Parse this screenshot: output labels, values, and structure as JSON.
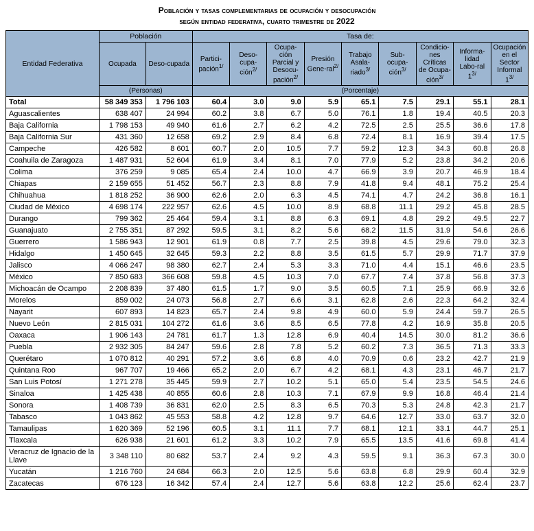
{
  "title": "Población y tasas complementarias de ocupación y desocupación",
  "subtitle": "según entidad federativa, cuarto trimestre de 2022",
  "headers": {
    "entity": "Entidad Federativa",
    "population_group": "Población",
    "rate_group": "Tasa de:",
    "ocupada": "Ocupada",
    "desocupada": "Deso-cupada",
    "participacion": "Partici-pación",
    "desocupacion": "Deso-cupa-ción",
    "ocup_parcial": "Ocupa-ción Parcial y Desocu-pación",
    "presion": "Presión Gene-ral",
    "trabajo_asal": "Trabajo Asala-riado",
    "subocup": "Sub-ocupa-ción",
    "cond_crit": "Condicio-nes Críticas de Ocupa-ción",
    "informal": "Informa-lidad Labo-ral 1",
    "sector_inf": "Ocupación en el Sector Informal 1",
    "units_personas": "(Personas)",
    "units_porcentaje": "(Porcentaje)",
    "sup1": "1/",
    "sup2": "2/",
    "sup3": "3/"
  },
  "rows": [
    {
      "entity": "Total",
      "ocupada": "58 349 353",
      "desocupada": "1 796 103",
      "r": [
        "60.4",
        "3.0",
        "9.0",
        "5.9",
        "65.1",
        "7.5",
        "29.1",
        "55.1",
        "28.1"
      ],
      "bold": true
    },
    {
      "entity": "Aguascalientes",
      "ocupada": "638 407",
      "desocupada": "24 994",
      "r": [
        "60.2",
        "3.8",
        "6.7",
        "5.0",
        "76.1",
        "1.8",
        "19.4",
        "40.5",
        "20.3"
      ]
    },
    {
      "entity": "Baja California",
      "ocupada": "1 798 153",
      "desocupada": "49 940",
      "r": [
        "61.6",
        "2.7",
        "6.2",
        "4.2",
        "72.5",
        "2.5",
        "25.5",
        "36.6",
        "17.8"
      ]
    },
    {
      "entity": "Baja California Sur",
      "ocupada": "431 360",
      "desocupada": "12 658",
      "r": [
        "69.2",
        "2.9",
        "8.4",
        "6.8",
        "72.4",
        "8.1",
        "16.9",
        "39.4",
        "17.5"
      ]
    },
    {
      "entity": "Campeche",
      "ocupada": "426 582",
      "desocupada": "8 601",
      "r": [
        "60.7",
        "2.0",
        "10.5",
        "7.7",
        "59.2",
        "12.3",
        "34.3",
        "60.8",
        "26.8"
      ]
    },
    {
      "entity": "Coahuila de Zaragoza",
      "ocupada": "1 487 931",
      "desocupada": "52 604",
      "r": [
        "61.9",
        "3.4",
        "8.1",
        "7.0",
        "77.9",
        "5.2",
        "23.8",
        "34.2",
        "20.6"
      ]
    },
    {
      "entity": "Colima",
      "ocupada": "376 259",
      "desocupada": "9 085",
      "r": [
        "65.4",
        "2.4",
        "10.0",
        "4.7",
        "66.9",
        "3.9",
        "20.7",
        "46.9",
        "18.4"
      ]
    },
    {
      "entity": "Chiapas",
      "ocupada": "2 159 655",
      "desocupada": "51 452",
      "r": [
        "56.7",
        "2.3",
        "8.8",
        "7.9",
        "41.8",
        "9.4",
        "48.1",
        "75.2",
        "25.4"
      ]
    },
    {
      "entity": "Chihuahua",
      "ocupada": "1 818 252",
      "desocupada": "36 900",
      "r": [
        "62.6",
        "2.0",
        "6.3",
        "4.5",
        "74.1",
        "4.7",
        "24.2",
        "36.8",
        "16.1"
      ]
    },
    {
      "entity": "Ciudad de México",
      "ocupada": "4 698 174",
      "desocupada": "222 957",
      "r": [
        "62.6",
        "4.5",
        "10.0",
        "8.9",
        "68.8",
        "11.1",
        "29.2",
        "45.8",
        "28.5"
      ]
    },
    {
      "entity": "Durango",
      "ocupada": "799 362",
      "desocupada": "25 464",
      "r": [
        "59.4",
        "3.1",
        "8.8",
        "6.3",
        "69.1",
        "4.8",
        "29.2",
        "49.5",
        "22.7"
      ]
    },
    {
      "entity": "Guanajuato",
      "ocupada": "2 755 351",
      "desocupada": "87 292",
      "r": [
        "59.5",
        "3.1",
        "8.2",
        "5.6",
        "68.2",
        "11.5",
        "31.9",
        "54.6",
        "26.6"
      ]
    },
    {
      "entity": "Guerrero",
      "ocupada": "1 586 943",
      "desocupada": "12 901",
      "r": [
        "61.9",
        "0.8",
        "7.7",
        "2.5",
        "39.8",
        "4.5",
        "29.6",
        "79.0",
        "32.3"
      ]
    },
    {
      "entity": "Hidalgo",
      "ocupada": "1 450 645",
      "desocupada": "32 645",
      "r": [
        "59.3",
        "2.2",
        "8.8",
        "3.5",
        "61.5",
        "5.7",
        "29.9",
        "71.7",
        "37.9"
      ]
    },
    {
      "entity": "Jalisco",
      "ocupada": "4 066 247",
      "desocupada": "98 380",
      "r": [
        "62.7",
        "2.4",
        "5.3",
        "3.3",
        "71.0",
        "4.4",
        "15.1",
        "46.6",
        "23.5"
      ]
    },
    {
      "entity": "México",
      "ocupada": "7 850 683",
      "desocupada": "366 608",
      "r": [
        "59.8",
        "4.5",
        "10.3",
        "7.0",
        "67.7",
        "7.4",
        "37.8",
        "56.8",
        "37.3"
      ]
    },
    {
      "entity": "Michoacán de Ocampo",
      "ocupada": "2 208 839",
      "desocupada": "37 480",
      "r": [
        "61.5",
        "1.7",
        "9.0",
        "3.5",
        "60.5",
        "7.1",
        "25.9",
        "66.9",
        "32.6"
      ]
    },
    {
      "entity": "Morelos",
      "ocupada": "859 002",
      "desocupada": "24 073",
      "r": [
        "56.8",
        "2.7",
        "6.6",
        "3.1",
        "62.8",
        "2.6",
        "22.3",
        "64.2",
        "32.4"
      ]
    },
    {
      "entity": "Nayarit",
      "ocupada": "607 893",
      "desocupada": "14 823",
      "r": [
        "65.7",
        "2.4",
        "9.8",
        "4.9",
        "60.0",
        "5.9",
        "24.4",
        "59.7",
        "26.5"
      ]
    },
    {
      "entity": "Nuevo León",
      "ocupada": "2 815 031",
      "desocupada": "104 272",
      "r": [
        "61.6",
        "3.6",
        "8.5",
        "6.5",
        "77.8",
        "4.2",
        "16.9",
        "35.8",
        "20.5"
      ]
    },
    {
      "entity": "Oaxaca",
      "ocupada": "1 906 143",
      "desocupada": "24 781",
      "r": [
        "61.7",
        "1.3",
        "12.8",
        "6.9",
        "40.4",
        "14.5",
        "30.0",
        "81.2",
        "36.6"
      ]
    },
    {
      "entity": "Puebla",
      "ocupada": "2 932 305",
      "desocupada": "84 247",
      "r": [
        "59.6",
        "2.8",
        "7.8",
        "5.2",
        "60.2",
        "7.3",
        "36.5",
        "71.3",
        "33.3"
      ]
    },
    {
      "entity": "Querétaro",
      "ocupada": "1 070 812",
      "desocupada": "40 291",
      "r": [
        "57.2",
        "3.6",
        "6.8",
        "4.0",
        "70.9",
        "0.6",
        "23.2",
        "42.7",
        "21.9"
      ]
    },
    {
      "entity": "Quintana Roo",
      "ocupada": "967 707",
      "desocupada": "19 466",
      "r": [
        "65.2",
        "2.0",
        "6.7",
        "4.2",
        "68.1",
        "4.3",
        "23.1",
        "46.7",
        "21.7"
      ]
    },
    {
      "entity": "San Luis Potosí",
      "ocupada": "1 271 278",
      "desocupada": "35 445",
      "r": [
        "59.9",
        "2.7",
        "10.2",
        "5.1",
        "65.0",
        "5.4",
        "23.5",
        "54.5",
        "24.6"
      ]
    },
    {
      "entity": "Sinaloa",
      "ocupada": "1 425 438",
      "desocupada": "40 855",
      "r": [
        "60.6",
        "2.8",
        "10.3",
        "7.1",
        "67.9",
        "9.9",
        "16.8",
        "46.4",
        "21.4"
      ]
    },
    {
      "entity": "Sonora",
      "ocupada": "1 408 739",
      "desocupada": "36 831",
      "r": [
        "62.0",
        "2.5",
        "8.3",
        "6.5",
        "70.3",
        "5.3",
        "24.8",
        "42.3",
        "21.7"
      ]
    },
    {
      "entity": "Tabasco",
      "ocupada": "1 043 862",
      "desocupada": "45 553",
      "r": [
        "58.8",
        "4.2",
        "12.8",
        "9.7",
        "64.6",
        "12.7",
        "33.0",
        "63.7",
        "32.0"
      ]
    },
    {
      "entity": "Tamaulipas",
      "ocupada": "1 620 369",
      "desocupada": "52 196",
      "r": [
        "60.5",
        "3.1",
        "11.1",
        "7.7",
        "68.1",
        "12.1",
        "33.1",
        "44.7",
        "25.1"
      ]
    },
    {
      "entity": "Tlaxcala",
      "ocupada": "626 938",
      "desocupada": "21 601",
      "r": [
        "61.2",
        "3.3",
        "10.2",
        "7.9",
        "65.5",
        "13.5",
        "41.6",
        "69.8",
        "41.4"
      ]
    },
    {
      "entity": "Veracruz de Ignacio de la Llave",
      "ocupada": "3 348 110",
      "desocupada": "80 682",
      "r": [
        "53.7",
        "2.4",
        "9.2",
        "4.3",
        "59.5",
        "9.1",
        "36.3",
        "67.3",
        "30.0"
      ]
    },
    {
      "entity": "Yucatán",
      "ocupada": "1 216 760",
      "desocupada": "24 684",
      "r": [
        "66.3",
        "2.0",
        "12.5",
        "5.6",
        "63.8",
        "6.8",
        "29.9",
        "60.4",
        "32.9"
      ]
    },
    {
      "entity": "Zacatecas",
      "ocupada": "676 123",
      "desocupada": "16 342",
      "r": [
        "57.4",
        "2.4",
        "12.7",
        "5.6",
        "63.8",
        "12.2",
        "25.6",
        "62.4",
        "23.7"
      ]
    }
  ]
}
